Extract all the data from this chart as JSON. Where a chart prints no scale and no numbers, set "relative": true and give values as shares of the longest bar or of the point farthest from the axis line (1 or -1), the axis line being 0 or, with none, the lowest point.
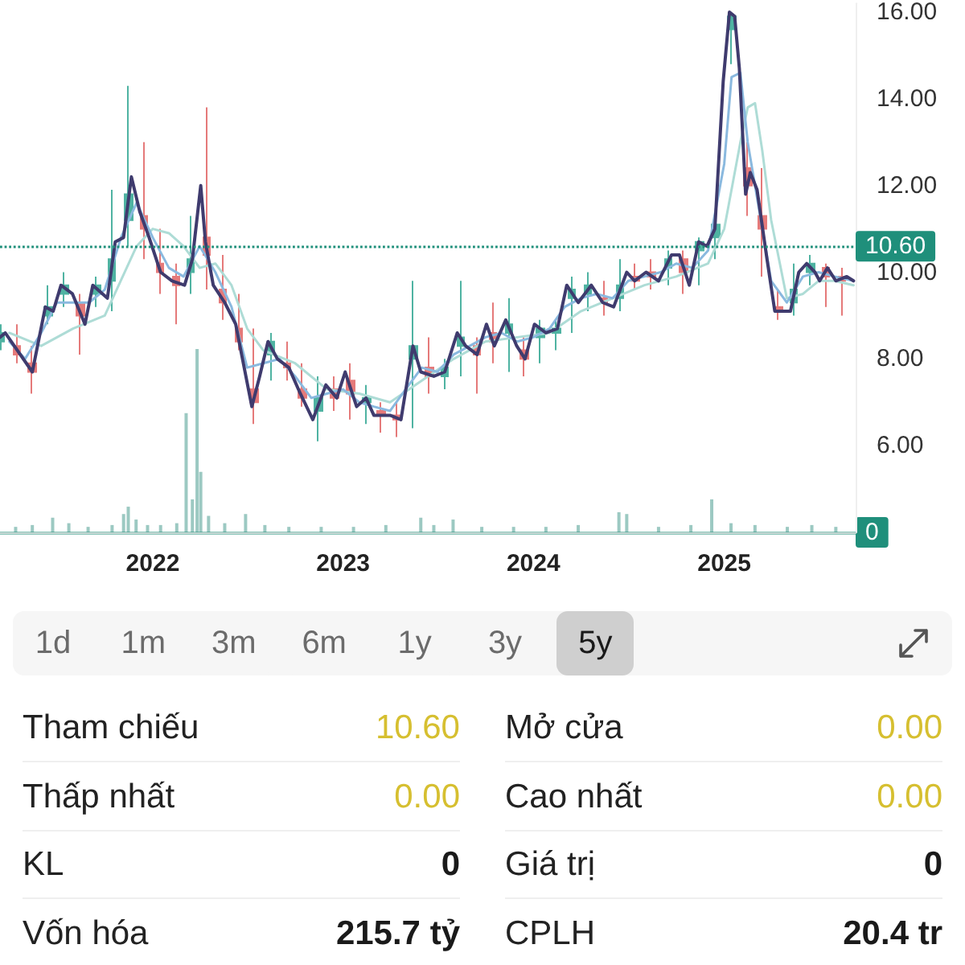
{
  "chart_data": [
    {
      "type": "line",
      "xlim": [
        "2021-03-14",
        "2025-09-10"
      ],
      "xticks": [
        "2022",
        "2023",
        "2024",
        "2025"
      ],
      "ylim": [
        4,
        16.2
      ],
      "yticks": [
        {
          "value": 6,
          "label": "6.00"
        },
        {
          "value": 8,
          "label": "8.00"
        },
        {
          "value": 10,
          "label": "10.00"
        },
        {
          "value": 12,
          "label": "12.00"
        },
        {
          "value": 14,
          "label": "14.00"
        },
        {
          "value": 16,
          "label": "16.00"
        }
      ],
      "line_style": "solid",
      "series": [
        {
          "type": "line",
          "color": "#3f3b6e",
          "x": [
            "2021-03-14",
            "2021-03-24",
            "2021-05-15",
            "2021-06-09",
            "2021-06-24",
            "2021-07-09",
            "2021-07-31",
            "2021-08-24",
            "2021-09-08",
            "2021-10-06",
            "2021-10-21",
            "2021-11-06",
            "2021-11-21",
            "2021-12-07",
            "2021-12-25",
            "2022-01-16",
            "2022-02-07",
            "2022-03-03",
            "2022-03-18",
            "2022-04-03",
            "2022-04-12",
            "2022-04-27",
            "2022-05-19",
            "2022-06-09",
            "2022-07-10",
            "2022-07-25",
            "2022-08-10",
            "2022-08-28",
            "2022-09-19",
            "2022-10-11",
            "2022-11-04",
            "2022-11-29",
            "2022-12-20",
            "2023-01-05",
            "2023-01-27",
            "2023-02-14",
            "2023-03-01",
            "2023-04-01",
            "2023-04-22",
            "2023-05-15",
            "2023-05-30",
            "2023-06-24",
            "2023-07-15",
            "2023-08-08",
            "2023-08-24",
            "2023-09-15",
            "2023-10-03",
            "2023-10-18",
            "2023-11-09",
            "2023-11-30",
            "2023-12-16",
            "2024-01-03",
            "2024-01-25",
            "2024-02-16",
            "2024-03-05",
            "2024-03-27",
            "2024-04-21",
            "2024-05-13",
            "2024-06-03",
            "2024-06-28",
            "2024-07-13",
            "2024-08-04",
            "2024-08-28",
            "2024-09-22",
            "2024-10-07",
            "2024-10-26",
            "2024-11-13",
            "2024-11-29",
            "2024-12-14",
            "2024-12-30",
            "2025-01-11",
            "2025-01-21",
            "2025-01-30",
            "2025-02-11",
            "2025-02-20",
            "2025-03-05",
            "2025-03-24",
            "2025-04-08",
            "2025-04-23",
            "2025-05-08",
            "2025-05-24",
            "2025-06-08",
            "2025-06-24",
            "2025-07-03",
            "2025-07-18",
            "2025-08-03",
            "2025-08-24",
            "2025-09-06"
          ],
          "values": [
            8.5,
            8.6,
            7.7,
            9.2,
            9.1,
            9.7,
            9.5,
            8.8,
            9.7,
            9.4,
            10.7,
            10.8,
            12.2,
            11.4,
            10.8,
            10.0,
            9.8,
            9.7,
            10.3,
            12.0,
            10.7,
            9.7,
            9.3,
            8.8,
            6.9,
            7.6,
            8.4,
            8.0,
            7.8,
            7.2,
            6.6,
            7.4,
            7.1,
            7.7,
            6.9,
            7.1,
            6.7,
            6.7,
            6.6,
            8.3,
            7.7,
            7.6,
            7.7,
            8.6,
            8.3,
            8.1,
            8.8,
            8.3,
            8.9,
            8.3,
            8.0,
            8.8,
            8.6,
            8.7,
            9.7,
            9.3,
            9.7,
            9.3,
            9.2,
            10.0,
            9.8,
            10.0,
            9.8,
            10.4,
            10.4,
            9.7,
            10.7,
            10.6,
            11.0,
            14.4,
            16.0,
            15.9,
            14.7,
            11.8,
            12.3,
            11.9,
            10.3,
            9.1,
            9.1,
            9.1,
            10.0,
            10.2,
            10.0,
            9.8,
            10.1,
            9.8,
            9.9,
            9.8
          ]
        },
        {
          "type": "line",
          "color": "#8ab9df",
          "x": [
            "2021-04-01",
            "2021-05-01",
            "2021-06-01",
            "2021-07-01",
            "2021-08-01",
            "2021-09-01",
            "2021-10-01",
            "2021-11-01",
            "2021-12-01",
            "2022-01-01",
            "2022-02-01",
            "2022-03-01",
            "2022-04-01",
            "2022-05-01",
            "2022-06-01",
            "2022-07-01",
            "2022-08-01",
            "2022-09-01",
            "2022-10-01",
            "2022-11-01",
            "2022-12-01",
            "2023-01-01",
            "2023-02-01",
            "2023-03-01",
            "2023-04-01",
            "2023-05-01",
            "2023-06-01",
            "2023-07-01",
            "2023-08-01",
            "2023-09-01",
            "2023-10-01",
            "2023-11-01",
            "2023-12-01",
            "2024-01-01",
            "2024-02-01",
            "2024-03-01",
            "2024-04-01",
            "2024-05-01",
            "2024-06-01",
            "2024-07-01",
            "2024-08-01",
            "2024-09-01",
            "2024-10-01",
            "2024-11-01",
            "2024-12-01",
            "2025-01-01",
            "2025-01-15",
            "2025-02-01",
            "2025-02-15",
            "2025-03-01",
            "2025-03-15",
            "2025-04-01",
            "2025-05-01",
            "2025-06-01",
            "2025-07-01",
            "2025-08-01",
            "2025-09-06"
          ],
          "values": [
            8.4,
            8.0,
            8.6,
            9.3,
            9.3,
            9.3,
            9.6,
            10.8,
            11.6,
            10.8,
            10.1,
            9.9,
            10.6,
            10.0,
            9.2,
            7.8,
            7.9,
            8.0,
            7.6,
            7.1,
            7.2,
            7.3,
            7.0,
            6.9,
            6.8,
            7.3,
            7.8,
            7.7,
            8.1,
            8.3,
            8.5,
            8.6,
            8.4,
            8.5,
            8.7,
            9.2,
            9.4,
            9.5,
            9.4,
            9.8,
            9.9,
            10.0,
            10.2,
            10.1,
            10.5,
            12.5,
            14.5,
            14.6,
            13.0,
            12.0,
            11.0,
            9.8,
            9.3,
            9.9,
            10.0,
            9.9,
            9.8
          ]
        },
        {
          "type": "line",
          "color": "#aedcd6",
          "x": [
            "2021-04-01",
            "2021-06-01",
            "2021-08-01",
            "2021-10-01",
            "2021-12-01",
            "2022-01-01",
            "2022-02-01",
            "2022-03-01",
            "2022-04-01",
            "2022-05-01",
            "2022-06-01",
            "2022-07-01",
            "2022-08-01",
            "2022-10-01",
            "2022-12-01",
            "2023-02-01",
            "2023-04-01",
            "2023-06-01",
            "2023-08-01",
            "2023-10-01",
            "2023-12-01",
            "2024-02-01",
            "2024-04-01",
            "2024-06-01",
            "2024-08-01",
            "2024-10-01",
            "2024-12-01",
            "2025-01-01",
            "2025-02-01",
            "2025-02-15",
            "2025-03-01",
            "2025-03-15",
            "2025-04-01",
            "2025-05-01",
            "2025-06-01",
            "2025-07-01",
            "2025-08-01",
            "2025-09-06"
          ],
          "values": [
            8.6,
            8.3,
            8.7,
            9.0,
            10.6,
            11.0,
            10.9,
            10.6,
            10.1,
            10.2,
            9.7,
            8.7,
            8.2,
            7.9,
            7.3,
            7.2,
            7.0,
            7.5,
            8.0,
            8.4,
            8.5,
            8.6,
            9.1,
            9.4,
            9.7,
            9.9,
            10.2,
            11.0,
            13.0,
            13.8,
            13.9,
            12.8,
            11.2,
            9.4,
            9.5,
            9.8,
            9.8,
            9.7
          ]
        },
        {
          "type": "candlestick",
          "x": [
            "2021-03-15",
            "2021-04-15",
            "2021-05-15",
            "2021-06-15",
            "2021-07-15",
            "2021-08-15",
            "2021-09-15",
            "2021-10-15",
            "2021-11-15",
            "2021-12-15",
            "2022-01-15",
            "2022-02-15",
            "2022-03-15",
            "2022-04-15",
            "2022-05-15",
            "2022-06-15",
            "2022-07-15",
            "2022-08-15",
            "2022-09-15",
            "2022-10-15",
            "2022-11-15",
            "2022-12-15",
            "2023-01-15",
            "2023-02-15",
            "2023-03-15",
            "2023-04-15",
            "2023-05-15",
            "2023-06-15",
            "2023-07-15",
            "2023-08-15",
            "2023-09-15",
            "2023-10-15",
            "2023-11-15",
            "2023-12-15",
            "2024-01-15",
            "2024-02-15",
            "2024-03-15",
            "2024-04-15",
            "2024-05-15",
            "2024-06-15",
            "2024-07-15",
            "2024-08-15",
            "2024-09-15",
            "2024-10-15",
            "2024-11-15",
            "2024-12-15",
            "2025-01-15",
            "2025-02-15",
            "2025-03-15",
            "2025-04-15",
            "2025-05-15",
            "2025-06-15",
            "2025-07-15",
            "2025-08-15"
          ],
          "ohlc": [
            [
              8.4,
              8.8,
              8.2,
              8.6
            ],
            [
              8.3,
              8.8,
              7.9,
              8.1
            ],
            [
              7.9,
              8.3,
              7.2,
              7.7
            ],
            [
              9.0,
              9.7,
              8.8,
              9.2
            ],
            [
              9.5,
              10.0,
              9.2,
              9.7
            ],
            [
              9.3,
              9.5,
              8.1,
              9.0
            ],
            [
              9.5,
              9.9,
              9.2,
              9.7
            ],
            [
              9.8,
              11.9,
              9.1,
              10.3
            ],
            [
              11.2,
              14.3,
              10.6,
              11.8
            ],
            [
              11.3,
              13.0,
              10.3,
              11.0
            ],
            [
              10.2,
              11.0,
              9.5,
              10.0
            ],
            [
              9.9,
              10.2,
              8.8,
              9.7
            ],
            [
              10.0,
              11.3,
              9.5,
              10.3
            ],
            [
              10.8,
              13.8,
              9.6,
              10.4
            ],
            [
              9.6,
              10.4,
              8.9,
              9.3
            ],
            [
              8.7,
              9.5,
              8.2,
              8.4
            ],
            [
              7.3,
              8.7,
              6.5,
              7.0
            ],
            [
              8.1,
              8.6,
              7.5,
              8.4
            ],
            [
              7.9,
              8.4,
              7.5,
              7.8
            ],
            [
              7.3,
              7.9,
              6.9,
              7.1
            ],
            [
              6.8,
              7.6,
              6.1,
              7.1
            ],
            [
              7.3,
              7.6,
              6.8,
              7.1
            ],
            [
              7.5,
              7.9,
              6.6,
              7.2
            ],
            [
              7.0,
              7.4,
              6.5,
              7.1
            ],
            [
              6.8,
              7.0,
              6.3,
              6.7
            ],
            [
              6.7,
              7.0,
              6.2,
              6.6
            ],
            [
              8.0,
              9.8,
              6.4,
              8.3
            ],
            [
              7.8,
              8.5,
              7.2,
              7.6
            ],
            [
              7.6,
              8.0,
              7.3,
              7.8
            ],
            [
              8.3,
              9.8,
              7.6,
              8.5
            ],
            [
              8.3,
              8.5,
              7.2,
              8.1
            ],
            [
              8.6,
              9.3,
              7.9,
              8.4
            ],
            [
              8.6,
              9.4,
              7.7,
              8.8
            ],
            [
              8.2,
              8.5,
              7.6,
              8.0
            ],
            [
              8.5,
              8.9,
              7.9,
              8.7
            ],
            [
              8.6,
              8.9,
              8.2,
              8.7
            ],
            [
              9.4,
              9.9,
              8.6,
              9.6
            ],
            [
              9.5,
              10.0,
              9.1,
              9.7
            ],
            [
              9.4,
              9.8,
              9.0,
              9.3
            ],
            [
              9.4,
              10.3,
              9.1,
              9.7
            ],
            [
              9.9,
              10.2,
              9.6,
              9.8
            ],
            [
              10.0,
              10.3,
              9.6,
              9.9
            ],
            [
              10.1,
              10.5,
              9.7,
              10.3
            ],
            [
              10.3,
              10.5,
              9.5,
              10.0
            ],
            [
              10.5,
              10.8,
              9.7,
              10.7
            ],
            [
              10.8,
              11.3,
              10.3,
              11.1
            ],
            [
              15.6,
              16.0,
              14.8,
              15.9
            ],
            [
              12.4,
              13.0,
              11.3,
              12.0
            ],
            [
              11.3,
              12.4,
              9.9,
              11.0
            ],
            [
              9.2,
              9.6,
              8.9,
              9.1
            ],
            [
              9.3,
              10.2,
              9.0,
              9.6
            ],
            [
              10.0,
              10.4,
              9.7,
              10.2
            ],
            [
              10.1,
              10.2,
              9.2,
              9.9
            ],
            [
              9.9,
              10.1,
              9.0,
              9.8
            ]
          ],
          "colors": [
            "#4fb3a2",
            "#e57a7a",
            "#e57a7a",
            "#4fb3a2",
            "#4fb3a2",
            "#e57a7a",
            "#4fb3a2",
            "#4fb3a2",
            "#4fb3a2",
            "#e57a7a",
            "#e57a7a",
            "#e57a7a",
            "#4fb3a2",
            "#e57a7a",
            "#e57a7a",
            "#e57a7a",
            "#e57a7a",
            "#4fb3a2",
            "#e57a7a",
            "#e57a7a",
            "#4fb3a2",
            "#e57a7a",
            "#e57a7a",
            "#4fb3a2",
            "#e57a7a",
            "#e57a7a",
            "#4fb3a2",
            "#e57a7a",
            "#4fb3a2",
            "#4fb3a2",
            "#e57a7a",
            "#e57a7a",
            "#4fb3a2",
            "#e57a7a",
            "#4fb3a2",
            "#4fb3a2",
            "#4fb3a2",
            "#4fb3a2",
            "#e57a7a",
            "#4fb3a2",
            "#e57a7a",
            "#e57a7a",
            "#4fb3a2",
            "#e57a7a",
            "#4fb3a2",
            "#4fb3a2",
            "#4fb3a2",
            "#e57a7a",
            "#e57a7a",
            "#e57a7a",
            "#4fb3a2",
            "#4fb3a2",
            "#e57a7a",
            "#e57a7a"
          ]
        }
      ],
      "ref_lines": [
        {
          "axis": "y",
          "value": 10.6,
          "label": "10.60",
          "color": "#1f8f7b",
          "line_style": "dotted"
        }
      ]
    },
    {
      "type": "bar",
      "relative": true,
      "tick_labels": false,
      "xlim": [
        "2021-03-14",
        "2025-09-10"
      ],
      "xticks": [
        "2022",
        "2023",
        "2024",
        "2025"
      ],
      "x": [
        "2021-04-13",
        "2021-05-15",
        "2021-06-23",
        "2021-07-24",
        "2021-08-30",
        "2021-10-15",
        "2021-11-06",
        "2021-11-15",
        "2021-11-30",
        "2021-12-22",
        "2022-01-16",
        "2022-02-16",
        "2022-03-06",
        "2022-03-18",
        "2022-03-27",
        "2022-04-03",
        "2022-04-18",
        "2022-05-19",
        "2022-06-28",
        "2022-08-04",
        "2022-09-19",
        "2022-11-20",
        "2023-01-21",
        "2023-03-24",
        "2023-05-30",
        "2023-06-24",
        "2023-07-31",
        "2023-09-24",
        "2023-11-24",
        "2024-01-25",
        "2024-03-27",
        "2024-06-13",
        "2024-06-28",
        "2024-08-28",
        "2024-10-29",
        "2024-12-08",
        "2025-01-14",
        "2025-03-01",
        "2025-05-02",
        "2025-06-18",
        "2025-08-03"
      ],
      "series": [
        {
          "color": "#9cc9c2",
          "values": [
            0.03,
            0.04,
            0.08,
            0.05,
            0.03,
            0.04,
            0.1,
            0.14,
            0.07,
            0.04,
            0.04,
            0.05,
            0.65,
            0.18,
            1,
            0.33,
            0.09,
            0.05,
            0.1,
            0.04,
            0.03,
            0.03,
            0.03,
            0.04,
            0.08,
            0.04,
            0.07,
            0.03,
            0.03,
            0.03,
            0.04,
            0.11,
            0.1,
            0.03,
            0.04,
            0.18,
            0.05,
            0.04,
            0.03,
            0.04,
            0.03
          ]
        }
      ],
      "ref_lines": [
        {
          "axis": "y",
          "value": 0,
          "label": "0",
          "color": "#1f8f7b",
          "line_style": "solid"
        }
      ]
    },
    {
      "type": "other",
      "categories": [
        "1d",
        "1m",
        "3m",
        "6m",
        "1y",
        "3y",
        "5y"
      ],
      "colors": [
        "#f6f6f6",
        "#f6f6f6",
        "#f6f6f6",
        "#f6f6f6",
        "#f6f6f6",
        "#f6f6f6",
        "#cfcfcf"
      ]
    },
    {
      "type": "other",
      "categories": [
        "Tham chiếu",
        "Mở cửa",
        "Thấp nhất",
        "Cao nhất",
        "KL",
        "Giá trị",
        "Vốn hóa",
        "CPLH"
      ],
      "value_labels": [
        "10.60",
        "0.00",
        "0.00",
        "0.00",
        "0",
        "0",
        "215.7 tỷ",
        "20.4 tr"
      ],
      "colors": [
        "#d6bf30",
        "#d6bf30",
        "#d6bf30",
        "#d6bf30",
        "#1a1a1a",
        "#1a1a1a",
        "#1a1a1a",
        "#1a1a1a"
      ]
    }
  ]
}
